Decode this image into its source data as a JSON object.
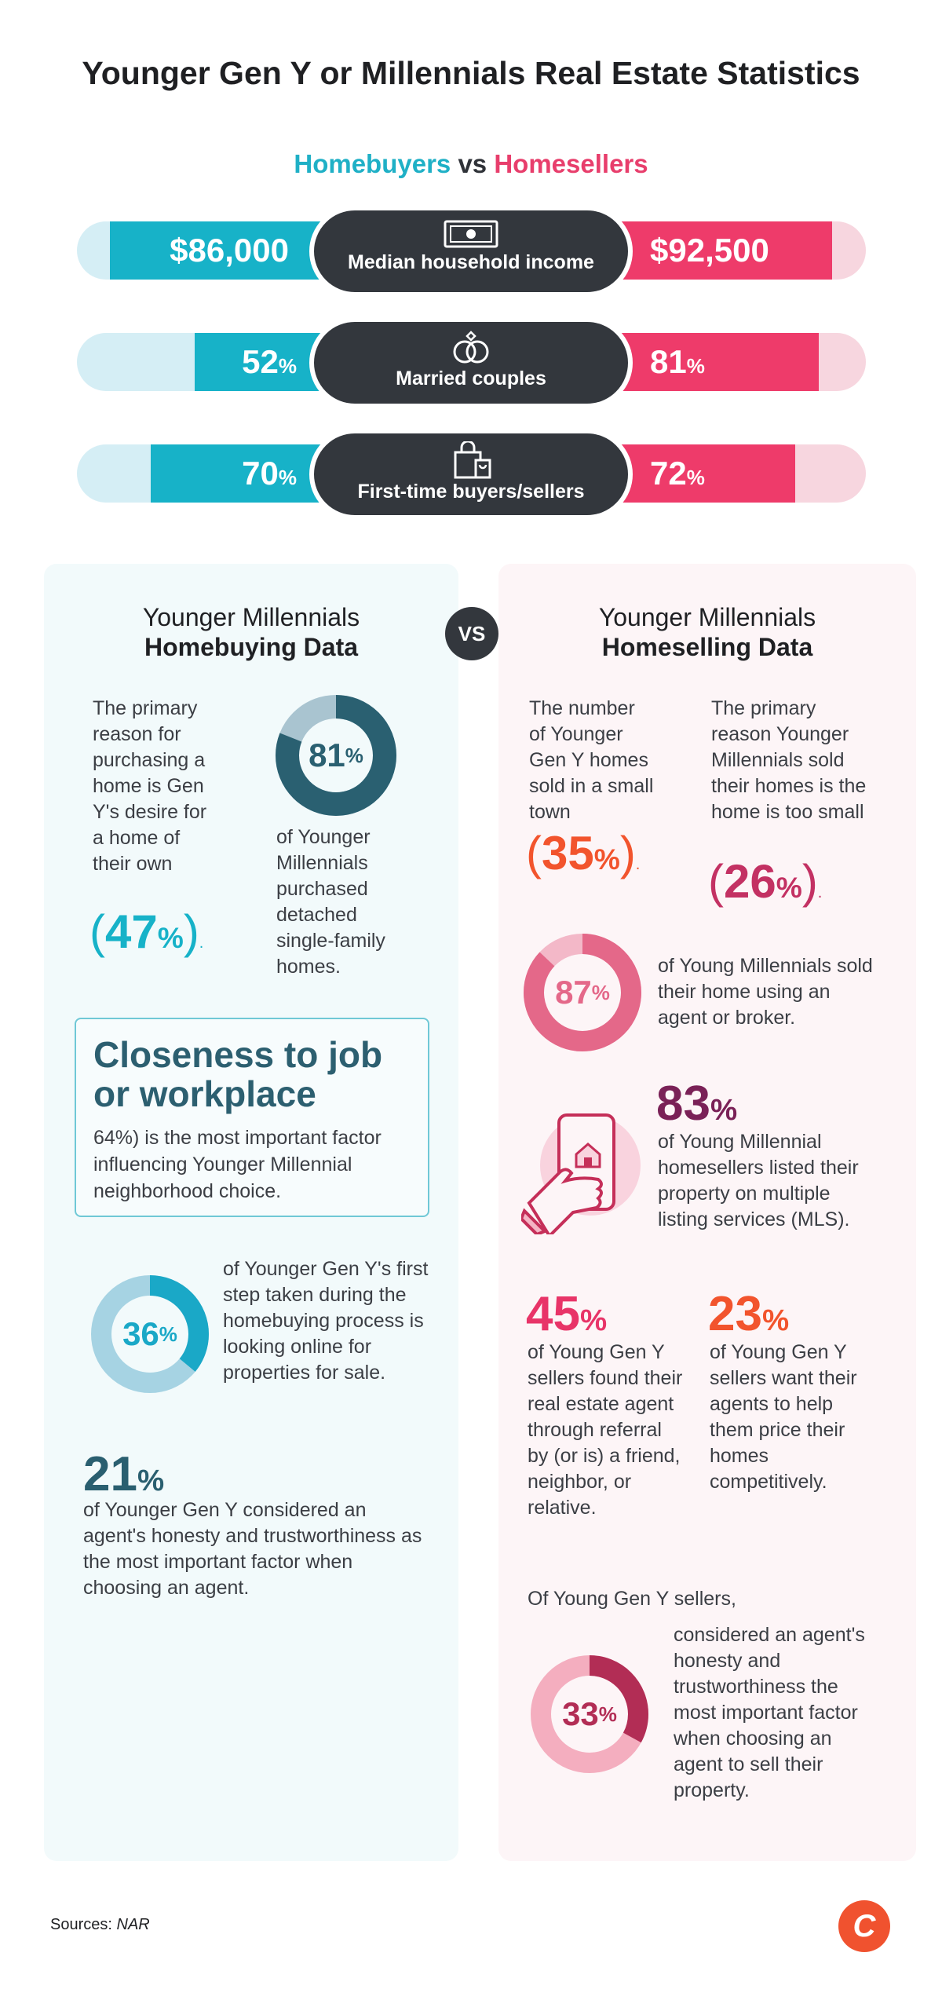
{
  "title": "Younger Gen Y or Millennials Real Estate Statistics",
  "subtitle": {
    "left": "Homebuyers",
    "vs": "vs",
    "right": "Homesellers"
  },
  "colors": {
    "buyer": "#17b2c8",
    "seller": "#ee3b6a",
    "dark": "#33373d"
  },
  "comparisons": [
    {
      "label": "Median household income",
      "icon": "money-icon",
      "buyer": "$86,000",
      "seller": "$92,500"
    },
    {
      "label": "Married couples",
      "icon": "rings-icon",
      "buyer": "52",
      "seller": "81",
      "unit": "%",
      "buyer_fill": 0.52,
      "seller_fill": 0.81
    },
    {
      "label": "First-time buyers/sellers",
      "icon": "shopping-bag-icon",
      "buyer": "70",
      "seller": "72",
      "unit": "%",
      "buyer_fill": 0.7,
      "seller_fill": 0.72
    }
  ],
  "vs_badge": "VS",
  "buying": {
    "head_line1": "Younger Millennials",
    "head_line2": "Homebuying Data",
    "reason_text": "The primary reason for purchasing a home is Gen Y's desire for a home of their own",
    "reason_pct": "47",
    "detached_pct": "81",
    "detached_fill": 0.81,
    "detached_text": "of Younger Millennials purchased detached single-family homes.",
    "closeness_head": "Closeness to job or workplace",
    "closeness_text": "64%) is the most important factor influencing Younger Millennial neighborhood choice.",
    "online_pct": "36",
    "online_fill": 0.36,
    "online_text": "of Younger Gen Y's first step taken during the homebuying process is looking online for properties for sale.",
    "honesty_pct": "21",
    "honesty_text": "of Younger Gen Y considered an agent's honesty and trustworthiness as the most important factor when choosing an agent."
  },
  "selling": {
    "head_line1": "Younger Millennials",
    "head_line2": "Homeselling Data",
    "smalltown_text": "The number of Younger Gen Y homes sold in a small town",
    "smalltown_pct": "35",
    "toosmall_text": "The primary reason Younger Millennials sold their homes is the home is too small",
    "toosmall_pct": "26",
    "agent_pct": "87",
    "agent_fill": 0.87,
    "agent_text": "of Young Millennials sold their home using an agent or broker.",
    "mls_pct": "83",
    "mls_text": "of Young Millennial homesellers listed their property on multiple listing services (MLS).",
    "referral_pct": "45",
    "referral_text": "of Young Gen Y sellers found their real estate agent through referral by (or is) a friend, neighbor, or relative.",
    "price_pct": "23",
    "price_text": "of Young Gen Y sellers want their agents to help them price their homes competitively.",
    "honesty_intro": "Of Young Gen Y sellers,",
    "honesty_pct": "33",
    "honesty_fill": 0.33,
    "honesty_text": "considered an agent's honesty and trustworthiness the most important factor when choosing an agent to sell their property."
  },
  "sources_label": "Sources:",
  "sources_value": "NAR",
  "logo_letter": "C"
}
